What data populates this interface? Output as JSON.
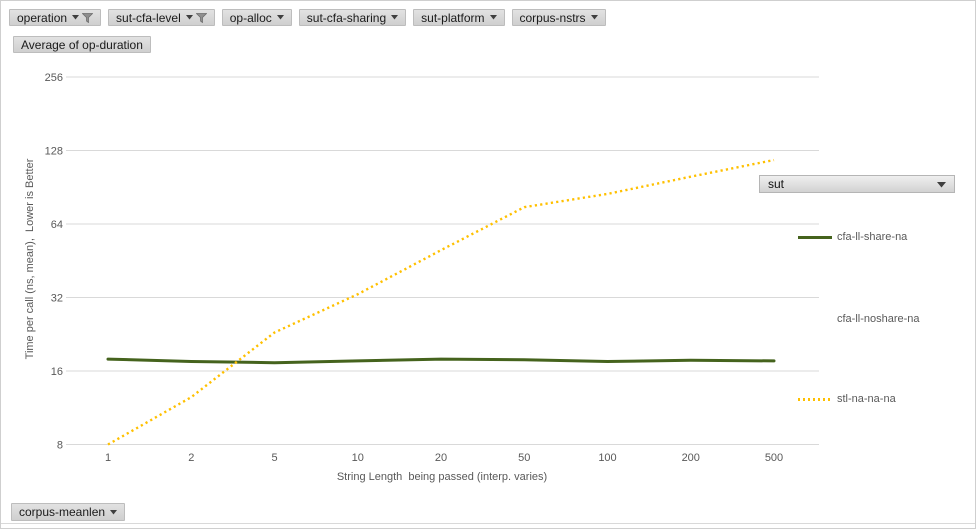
{
  "filter_buttons": [
    {
      "label": "operation",
      "filtered": true
    },
    {
      "label": "sut-cfa-level",
      "filtered": true
    },
    {
      "label": "op-alloc",
      "filtered": false
    },
    {
      "label": "sut-cfa-sharing",
      "filtered": false
    },
    {
      "label": "sut-platform",
      "filtered": false
    },
    {
      "label": "corpus-nstrs",
      "filtered": false
    }
  ],
  "value_button": {
    "label": "Average of op-duration"
  },
  "bottom_button": {
    "label": "corpus-meanlen"
  },
  "legend": {
    "field_button": "sut",
    "items": [
      {
        "label": "cfa-ll-share-na",
        "swatch": "solid"
      },
      {
        "label": "cfa-ll-noshare-na",
        "swatch": "none"
      },
      {
        "label": "stl-na-na-na",
        "swatch": "dotted"
      }
    ]
  },
  "chart_data": {
    "type": "line",
    "title": "",
    "x_axis": {
      "title": "String Length  being passed (interp. varies)",
      "scale": "log-category",
      "ticks": [
        "1",
        "2",
        "5",
        "10",
        "20",
        "50",
        "100",
        "200",
        "500"
      ]
    },
    "y_axis": {
      "title": "Time per call (ns, mean),  Lower is Better",
      "scale": "log2",
      "ticks": [
        256,
        128,
        64,
        32,
        16,
        8
      ],
      "range": [
        8,
        256
      ]
    },
    "grid": true,
    "legend_position": "right",
    "series": [
      {
        "name": "cfa-ll-share-na",
        "style": "solid",
        "color": "#45631d",
        "values": [
          17.9,
          17.5,
          17.3,
          17.6,
          17.9,
          17.8,
          17.5,
          17.7,
          17.6
        ]
      },
      {
        "name": "cfa-ll-noshare-na",
        "style": "hidden",
        "color": "",
        "values": []
      },
      {
        "name": "stl-na-na-na",
        "style": "dotted",
        "color": "#ffc000",
        "values": [
          8,
          12.5,
          23,
          33,
          50,
          75,
          85,
          100,
          117
        ]
      }
    ]
  },
  "colors": {
    "gridline": "#d9d9d9",
    "tick_text": "#595959",
    "series_green": "#45631d",
    "series_gold": "#ffc000"
  }
}
